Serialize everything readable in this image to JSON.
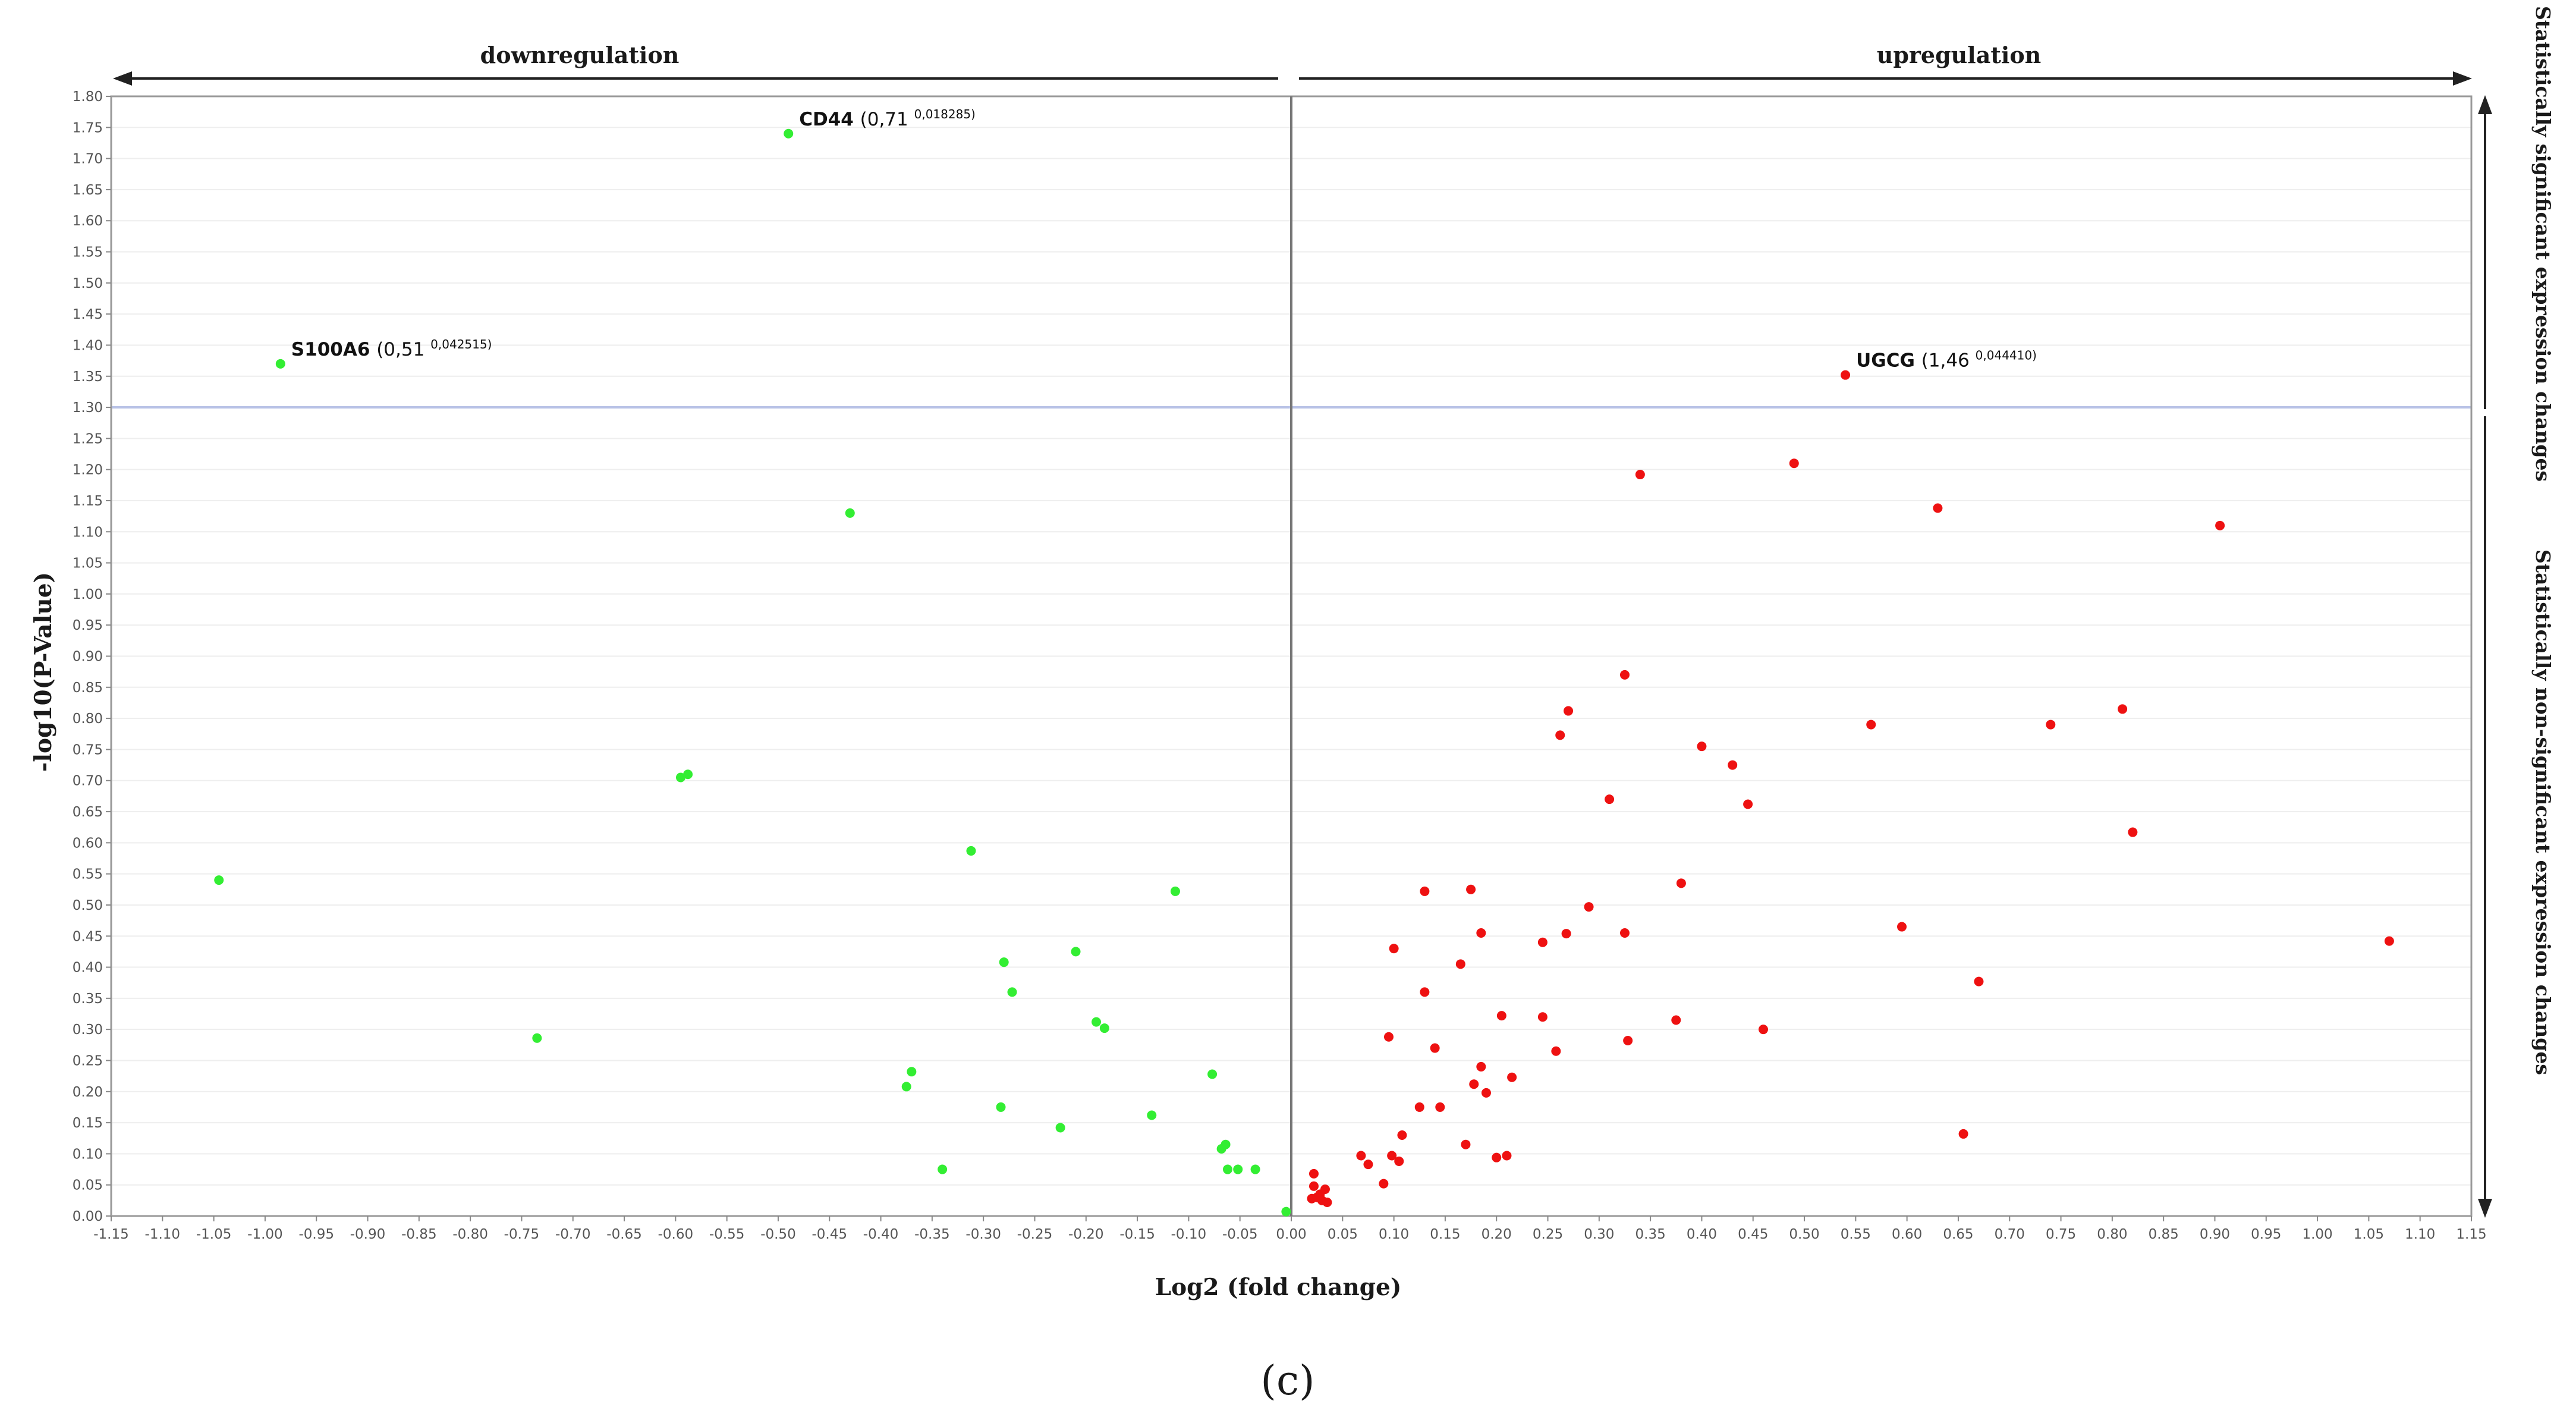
{
  "chart_data": {
    "type": "scatter",
    "title": "",
    "panel_label": "(c)",
    "xlabel": "Log2 (fold change)",
    "ylabel": "-log10(P-Value)",
    "xlim": [
      -1.15,
      1.15
    ],
    "ylim": [
      0,
      1.8
    ],
    "x_tick_step": 0.05,
    "y_tick_step": 0.05,
    "grid": true,
    "significance_threshold": 1.3,
    "region_labels": {
      "left": "downregulation",
      "right": "upregulation",
      "top_right": "Statistically significant expression changes",
      "bottom_right": "Statistically non-significant expression changes"
    },
    "series": [
      {
        "color": "#33ee33",
        "points": [
          [
            -0.49,
            1.74
          ],
          [
            -0.985,
            1.37
          ],
          [
            -0.43,
            1.13
          ],
          [
            -0.595,
            0.705
          ],
          [
            -0.588,
            0.71
          ],
          [
            -1.045,
            0.54
          ],
          [
            -0.312,
            0.587
          ],
          [
            -0.113,
            0.522
          ],
          [
            -0.21,
            0.425
          ],
          [
            -0.28,
            0.408
          ],
          [
            -0.272,
            0.36
          ],
          [
            -0.19,
            0.312
          ],
          [
            -0.182,
            0.302
          ],
          [
            -0.735,
            0.286
          ],
          [
            -0.37,
            0.232
          ],
          [
            -0.375,
            0.208
          ],
          [
            -0.077,
            0.228
          ],
          [
            -0.283,
            0.175
          ],
          [
            -0.136,
            0.162
          ],
          [
            -0.225,
            0.142
          ],
          [
            -0.064,
            0.115
          ],
          [
            -0.068,
            0.108
          ],
          [
            -0.34,
            0.075
          ],
          [
            -0.062,
            0.075
          ],
          [
            -0.052,
            0.075
          ],
          [
            -0.035,
            0.075
          ],
          [
            -0.005,
            0.007
          ]
        ]
      },
      {
        "color": "#ee1111",
        "points": [
          [
            0.54,
            1.352
          ],
          [
            0.34,
            1.192
          ],
          [
            0.49,
            1.21
          ],
          [
            0.63,
            1.138
          ],
          [
            0.905,
            1.11
          ],
          [
            0.325,
            0.87
          ],
          [
            0.27,
            0.812
          ],
          [
            0.262,
            0.773
          ],
          [
            0.565,
            0.79
          ],
          [
            0.74,
            0.79
          ],
          [
            0.81,
            0.815
          ],
          [
            0.4,
            0.755
          ],
          [
            0.43,
            0.725
          ],
          [
            0.31,
            0.67
          ],
          [
            0.445,
            0.662
          ],
          [
            0.82,
            0.617
          ],
          [
            0.13,
            0.522
          ],
          [
            0.175,
            0.525
          ],
          [
            0.38,
            0.535
          ],
          [
            0.29,
            0.497
          ],
          [
            0.595,
            0.465
          ],
          [
            0.185,
            0.455
          ],
          [
            0.245,
            0.44
          ],
          [
            0.268,
            0.454
          ],
          [
            0.325,
            0.455
          ],
          [
            1.07,
            0.442
          ],
          [
            0.1,
            0.43
          ],
          [
            0.165,
            0.405
          ],
          [
            0.67,
            0.377
          ],
          [
            0.13,
            0.36
          ],
          [
            0.205,
            0.322
          ],
          [
            0.245,
            0.32
          ],
          [
            0.375,
            0.315
          ],
          [
            0.46,
            0.3
          ],
          [
            0.095,
            0.288
          ],
          [
            0.328,
            0.282
          ],
          [
            0.14,
            0.27
          ],
          [
            0.258,
            0.265
          ],
          [
            0.185,
            0.24
          ],
          [
            0.215,
            0.223
          ],
          [
            0.178,
            0.212
          ],
          [
            0.19,
            0.198
          ],
          [
            0.125,
            0.175
          ],
          [
            0.145,
            0.175
          ],
          [
            0.655,
            0.132
          ],
          [
            0.108,
            0.13
          ],
          [
            0.17,
            0.115
          ],
          [
            0.068,
            0.097
          ],
          [
            0.098,
            0.097
          ],
          [
            0.2,
            0.094
          ],
          [
            0.21,
            0.097
          ],
          [
            0.075,
            0.083
          ],
          [
            0.105,
            0.088
          ],
          [
            0.022,
            0.068
          ],
          [
            0.09,
            0.052
          ],
          [
            0.022,
            0.048
          ],
          [
            0.033,
            0.043
          ],
          [
            0.028,
            0.035
          ],
          [
            0.02,
            0.028
          ],
          [
            0.03,
            0.025
          ],
          [
            0.035,
            0.022
          ],
          [
            0.025,
            0.03
          ]
        ]
      }
    ],
    "annotations": [
      {
        "gene": "CD44",
        "value": "(0,71",
        "sub": "0,018285)",
        "x": -0.49,
        "y": 1.74
      },
      {
        "gene": "S100A6",
        "value": "(0,51",
        "sub": "0,042515)",
        "x": -0.985,
        "y": 1.37
      },
      {
        "gene": "UGCG",
        "value": "(1,46",
        "sub": "0,044410)",
        "x": 0.54,
        "y": 1.352
      }
    ]
  }
}
